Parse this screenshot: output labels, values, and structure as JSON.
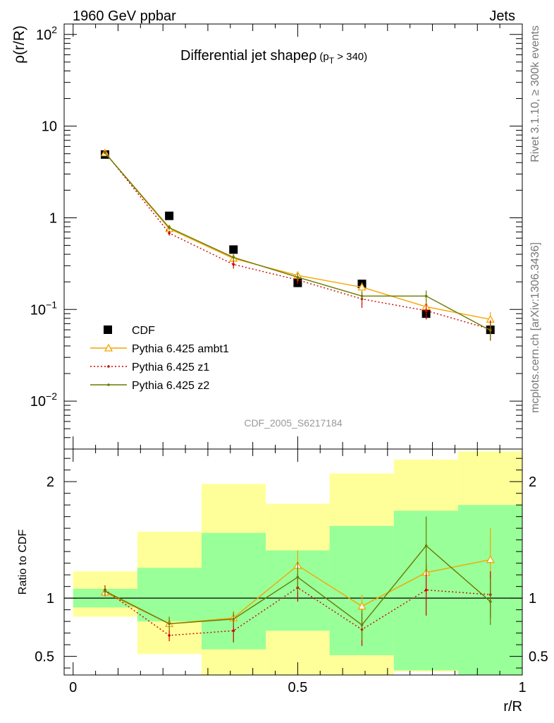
{
  "header": {
    "left": "1960 GeV ppbar",
    "right": "Jets"
  },
  "side": {
    "top": "Rivet 3.1.10, ≥ 300k events",
    "bottom": "mcplots.cern.ch [arXiv:1306.3436]"
  },
  "chart_data": [
    {
      "type": "line",
      "panel": "main",
      "title": "Differential jet shapeρ",
      "title_sub_prefix": "(p",
      "title_sub_index": "T",
      "title_sub_suffix": " > 340)",
      "ylabel": "ρ(r/R)",
      "yscale": "log",
      "ylim": [
        0.003,
        130
      ],
      "xlim": [
        -0.02,
        1.0
      ],
      "x_ticks": [
        0,
        0.5,
        1
      ],
      "y_tick_labels": [
        {
          "base": "10",
          "exp": "−2",
          "value": 0.01
        },
        {
          "base": "10",
          "exp": "−1",
          "value": 0.1
        },
        {
          "base": "1",
          "exp": "",
          "value": 1
        },
        {
          "base": "10",
          "exp": "",
          "value": 10
        },
        {
          "base": "10",
          "exp": "2",
          "value": 100
        }
      ],
      "x": [
        0.071,
        0.214,
        0.357,
        0.5,
        0.643,
        0.786,
        0.929
      ],
      "legend_position": "bottom-left",
      "watermark": "CDF_2005_S6217184",
      "series": [
        {
          "name": "CDF",
          "color": "#000000",
          "style": "markers",
          "values": [
            4.9,
            1.05,
            0.45,
            0.195,
            0.19,
            0.09,
            0.06
          ]
        },
        {
          "name": "Pythia 6.425 ambt1",
          "color": "#f5a500",
          "style": "solid-triangle",
          "values": [
            5.1,
            0.76,
            0.36,
            0.235,
            0.175,
            0.107,
            0.078
          ],
          "err_rel": [
            0.03,
            0.06,
            0.08,
            0.1,
            0.12,
            0.15,
            0.2
          ]
        },
        {
          "name": "Pythia 6.425 z1",
          "color": "#cc0000",
          "style": "dotted",
          "values": [
            5.2,
            0.68,
            0.31,
            0.21,
            0.13,
            0.097,
            0.061
          ],
          "err_rel": [
            0.03,
            0.06,
            0.1,
            0.1,
            0.2,
            0.2,
            0.25
          ]
        },
        {
          "name": "Pythia 6.425 z2",
          "color": "#6b7a00",
          "style": "solid-dot",
          "values": [
            5.1,
            0.78,
            0.37,
            0.225,
            0.14,
            0.14,
            0.059
          ],
          "err_rel": [
            0.03,
            0.06,
            0.08,
            0.1,
            0.12,
            0.15,
            0.2
          ]
        }
      ]
    },
    {
      "type": "line",
      "panel": "ratio",
      "ylabel": "Ratio to CDF",
      "xlabel": "r/R",
      "ylim": [
        0.34,
        2.28
      ],
      "xlim": [
        -0.02,
        1.0
      ],
      "x_ticks": [
        0,
        0.5,
        1
      ],
      "y_ticks": [
        0.5,
        1,
        2
      ],
      "y_tick_labels": [
        "0.5",
        "1",
        "2"
      ],
      "x": [
        0.071,
        0.214,
        0.357,
        0.5,
        0.643,
        0.786,
        0.929
      ],
      "bin_edges": [
        0.0,
        0.143,
        0.286,
        0.429,
        0.571,
        0.714,
        0.857,
        1.0
      ],
      "band_inner": [
        [
          0.92,
          1.08
        ],
        [
          0.8,
          1.26
        ],
        [
          0.56,
          1.56
        ],
        [
          0.72,
          1.41
        ],
        [
          0.51,
          1.62
        ],
        [
          0.38,
          1.75
        ],
        [
          0.34,
          1.8
        ]
      ],
      "band_outer": [
        [
          0.84,
          1.23
        ],
        [
          0.52,
          1.57
        ],
        [
          0.34,
          1.98
        ],
        [
          0.34,
          1.81
        ],
        [
          0.34,
          2.07
        ],
        [
          0.37,
          2.19
        ],
        [
          0.34,
          2.26
        ]
      ],
      "band_colors": {
        "inner": "#99ff99",
        "outer": "#ffff99"
      },
      "series": [
        {
          "name": "Pythia 6.425 ambt1",
          "color": "#f5a500",
          "style": "solid-triangle",
          "values": [
            1.05,
            0.78,
            0.83,
            1.28,
            0.93,
            1.22,
            1.33
          ],
          "err": [
            0.04,
            0.06,
            0.06,
            0.13,
            0.1,
            0.2,
            0.27
          ]
        },
        {
          "name": "Pythia 6.425 z1",
          "color": "#cc0000",
          "style": "dotted",
          "values": [
            1.07,
            0.68,
            0.72,
            1.09,
            0.73,
            1.07,
            1.03
          ],
          "err": [
            0.04,
            0.05,
            0.1,
            0.12,
            0.14,
            0.22,
            0.2
          ]
        },
        {
          "name": "Pythia 6.425 z2",
          "color": "#6b7a00",
          "style": "solid-dot",
          "values": [
            1.06,
            0.78,
            0.82,
            1.18,
            0.77,
            1.45,
            0.97
          ],
          "err": [
            0.04,
            0.06,
            0.06,
            0.13,
            0.13,
            0.25,
            0.2
          ]
        }
      ]
    }
  ]
}
